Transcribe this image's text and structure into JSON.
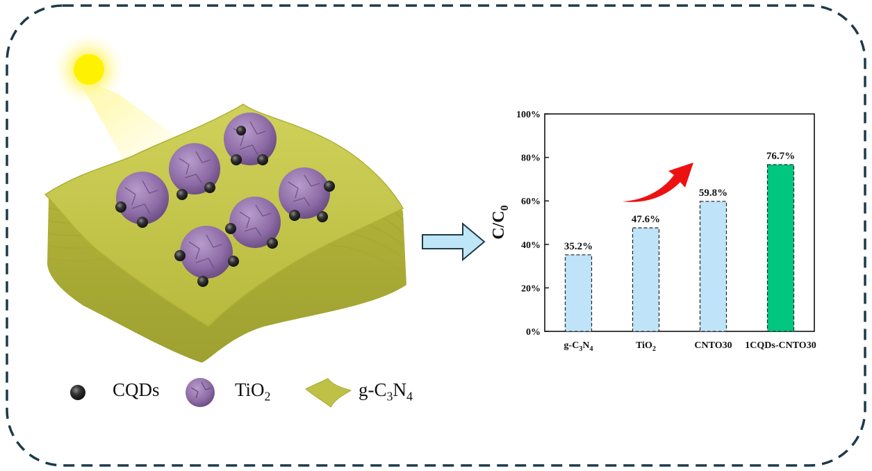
{
  "legend": {
    "cqds": "CQDs",
    "tio2": {
      "main": "TiO",
      "sub": "2"
    },
    "gcn": {
      "pre": "g-C",
      "sub1": "3",
      "mid": "N",
      "sub2": "4"
    }
  },
  "colors": {
    "frame": "#1d3a4a",
    "sheet": "#c2c44a",
    "tio2": "#9a7bb0",
    "cqd": "#2a2a2a",
    "sun": "#fff200",
    "arrow_fill": "#bfe6f7",
    "bar_light": "#bfe3f8",
    "bar_highlight": "#00c67f",
    "trend_arrow": "#ee1111"
  },
  "chart_data": {
    "type": "bar",
    "ylabel": {
      "main": "C/C",
      "sub": "0"
    },
    "ylim": [
      0,
      100
    ],
    "yticks": [
      "0%",
      "20%",
      "40%",
      "60%",
      "80%",
      "100%"
    ],
    "categories": [
      {
        "main": "g-C",
        "s1": "3",
        "mid": "N",
        "s2": "4"
      },
      {
        "main": "TiO",
        "s1": "2",
        "mid": "",
        "s2": ""
      },
      {
        "main": "CNTO30",
        "s1": "",
        "mid": "",
        "s2": ""
      },
      {
        "main": "1CQDs-CNTO30",
        "s1": "",
        "mid": "",
        "s2": ""
      }
    ],
    "values": [
      35.2,
      47.6,
      59.8,
      76.7
    ],
    "labels": [
      "35.2%",
      "47.6%",
      "59.8%",
      "76.7%"
    ],
    "highlight": [
      false,
      false,
      false,
      true
    ],
    "grid": false,
    "border": "box"
  }
}
